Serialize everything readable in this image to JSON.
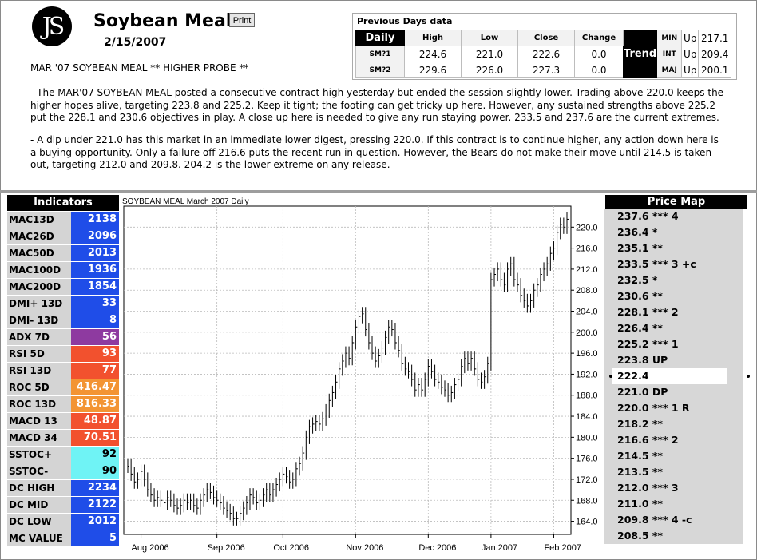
{
  "header": {
    "logo_text": "JS",
    "title": "Soybean Meal",
    "print_label": "Print",
    "date": "2/15/2007",
    "headline": "MAR '07 SOYBEAN MEAL ** HIGHER PROBE **"
  },
  "commentary": [
    "- The MAR'07 SOYBEAN MEAL posted a consecutive contract high yesterday but ended the session slightly lower. Trading above 220.0 keeps the higher hopes alive, targeting 223.8 and 225.2. Keep it tight; the footing can get tricky up here. However, any sustained strengths above 225.2 put the 228.1 and 230.6 objectives in play. A close up here is needed to give any run staying power. 233.5 and 237.6 are the current extremes.",
    "- A dip under 221.0 has this market in an immediate lower digest, pressing 220.0. If this contract is to continue higher, any action down here is a buying opportunity. Only a failure off 216.6 puts the recent run in question. However, the Bears do not make their move until 214.5 is taken out, targeting 212.0 and 209.8. 204.2 is the lower extreme on any release."
  ],
  "previous_days": {
    "title": "Previous Days data",
    "daily_label": "Daily",
    "columns": [
      "High",
      "Low",
      "Close",
      "Change"
    ],
    "rows": [
      {
        "label": "SM?1",
        "high": "224.6",
        "low": "221.0",
        "close": "222.6",
        "change": "0.0"
      },
      {
        "label": "SM?2",
        "high": "229.6",
        "low": "226.0",
        "close": "227.3",
        "change": "0.0"
      }
    ],
    "trend_label": "Trend",
    "trend": [
      {
        "label": "MIN",
        "dir": "Up",
        "value": "217.1"
      },
      {
        "label": "INT",
        "dir": "Up",
        "value": "209.4"
      },
      {
        "label": "MAJ",
        "dir": "Up",
        "value": "200.1"
      }
    ]
  },
  "indicators": {
    "title": "Indicators",
    "items": [
      {
        "label": "MAC13D",
        "value": "2138",
        "color": "#1f4de8"
      },
      {
        "label": "MAC26D",
        "value": "2096",
        "color": "#1f4de8"
      },
      {
        "label": "MAC50D",
        "value": "2013",
        "color": "#1f4de8"
      },
      {
        "label": "MAC100D",
        "value": "1936",
        "color": "#1f4de8"
      },
      {
        "label": "MAC200D",
        "value": "1854",
        "color": "#1f4de8"
      },
      {
        "label": "DMI+ 13D",
        "value": "33",
        "color": "#1f4de8"
      },
      {
        "label": "DMI- 13D",
        "value": "8",
        "color": "#1f4de8"
      },
      {
        "label": "ADX 7D",
        "value": "56",
        "color": "#8e3aa0"
      },
      {
        "label": "RSI 5D",
        "value": "93",
        "color": "#f2512e"
      },
      {
        "label": "RSI 13D",
        "value": "77",
        "color": "#f2512e"
      },
      {
        "label": "ROC 5D",
        "value": "416.47",
        "color": "#f39433"
      },
      {
        "label": "ROC 13D",
        "value": "816.33",
        "color": "#f39433"
      },
      {
        "label": "MACD 13",
        "value": "48.87",
        "color": "#f2512e"
      },
      {
        "label": "MACD 34",
        "value": "70.51",
        "color": "#f2512e"
      },
      {
        "label": "SSTOC+",
        "value": "92",
        "color": "#6ff3f5"
      },
      {
        "label": "SSTOC-",
        "value": "90",
        "color": "#6ff3f5"
      },
      {
        "label": "DC HIGH",
        "value": "2234",
        "color": "#1f4de8"
      },
      {
        "label": "DC MID",
        "value": "2122",
        "color": "#1f4de8"
      },
      {
        "label": "DC LOW",
        "value": "2012",
        "color": "#1f4de8"
      },
      {
        "label": "MC VALUE",
        "value": "5",
        "color": "#1f4de8"
      }
    ]
  },
  "chart_data": {
    "type": "ohlc",
    "title": "SOYBEAN MEAL March 2007 Daily",
    "ylim": [
      161.5,
      224.0
    ],
    "yticks": [
      164.0,
      168.0,
      172.0,
      176.0,
      180.0,
      184.0,
      188.0,
      192.0,
      196.0,
      200.0,
      204.0,
      208.0,
      212.0,
      216.0,
      220.0
    ],
    "xticks": [
      "Aug 2006",
      "Sep 2006",
      "Oct 2006",
      "Nov 2006",
      "Dec 2006",
      "Jan 2007",
      "Feb 2007"
    ],
    "grid": true,
    "closes": [
      174.5,
      173,
      171.5,
      172,
      173.5,
      172,
      170,
      169,
      168,
      168.5,
      168,
      167.5,
      168.5,
      168,
      167,
      166.5,
      167,
      168,
      167.5,
      168,
      167,
      166.5,
      168,
      169,
      170,
      169.5,
      168.5,
      168,
      167.5,
      166.5,
      166,
      165.5,
      164.5,
      164.5,
      165.5,
      166.5,
      167.5,
      169,
      168.5,
      167.5,
      168,
      169,
      170,
      169,
      170,
      171,
      172,
      173,
      172.5,
      171.5,
      172,
      174,
      175,
      177,
      180,
      182,
      182.5,
      183,
      182.5,
      183.5,
      185,
      187,
      188.5,
      190.5,
      193,
      194.5,
      196,
      195,
      198,
      201,
      203,
      203.5,
      200.5,
      198,
      196,
      194.5,
      195.5,
      197,
      199,
      201,
      200.5,
      198,
      196.5,
      194,
      193,
      192.5,
      191,
      189,
      190,
      189,
      191,
      193.5,
      192.5,
      191,
      190.5,
      189.5,
      189,
      188,
      188.5,
      190,
      191,
      193.5,
      195,
      194,
      195,
      193,
      191,
      190.5,
      191.5,
      194,
      210,
      211,
      212,
      210,
      209,
      212,
      213,
      210,
      209,
      207,
      206,
      205,
      206,
      208,
      209,
      211,
      212,
      213,
      215,
      216,
      219,
      220.5,
      220,
      221.5
    ]
  },
  "price_map": {
    "title": "Price Map",
    "items": [
      "237.6 *** 4",
      "236.4 *",
      "235.1 **",
      "233.5 *** 3 +c",
      "232.5 *",
      "230.6 **",
      "228.1 *** 2",
      "226.4 **",
      "225.2 *** 1",
      "223.8 UP",
      "222.4",
      "221.0 DP",
      "220.0 *** 1 R",
      "218.2 **",
      "216.6 *** 2",
      "214.5 **",
      "213.5 **",
      "212.0 *** 3",
      "211.0 **",
      "209.8 *** 4 -c",
      "208.5 **"
    ],
    "current_index": 10
  }
}
